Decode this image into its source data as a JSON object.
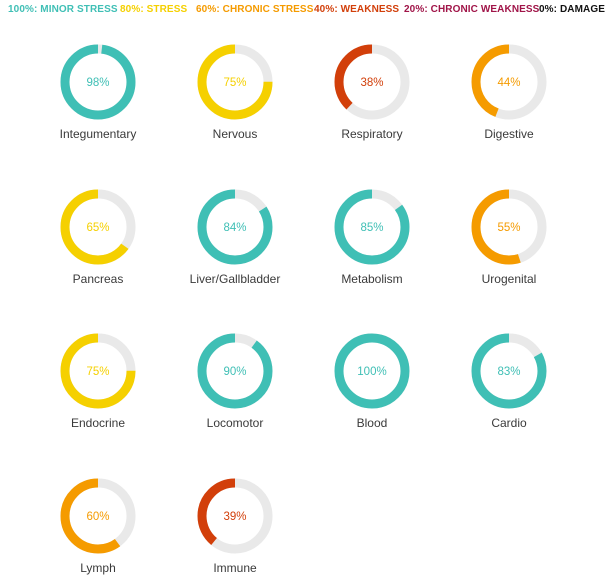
{
  "legend": [
    {
      "label": "100%: MINOR STRESS",
      "color": "#3fbfb5"
    },
    {
      "label": "80%: STRESS",
      "color": "#f5d000"
    },
    {
      "label": "60%: CHRONIC STRESS",
      "color": "#f59b00"
    },
    {
      "label": "40%: WEAKNESS",
      "color": "#d23f0a"
    },
    {
      "label": "20%: CHRONIC WEAKNESS",
      "color": "#a01448"
    },
    {
      "label": "0%: DAMAGE",
      "color": "#111111"
    }
  ],
  "chart_data": {
    "type": "donut-grid",
    "categories": [
      "Integumentary",
      "Nervous",
      "Respiratory",
      "Digestive",
      "Pancreas",
      "Liver/Gallbladder",
      "Metabolism",
      "Urogenital",
      "Endocrine",
      "Locomotor",
      "Blood",
      "Cardio",
      "Lymph",
      "Immune"
    ],
    "values": [
      98,
      75,
      38,
      44,
      65,
      84,
      85,
      55,
      75,
      90,
      100,
      83,
      60,
      39
    ],
    "value_labels": [
      "98%",
      "75%",
      "38%",
      "44%",
      "65%",
      "84%",
      "85%",
      "55%",
      "75%",
      "90%",
      "100%",
      "83%",
      "60%",
      "39%"
    ],
    "colors": [
      "#3fbfb5",
      "#f5d000",
      "#d23f0a",
      "#f59b00",
      "#f5d000",
      "#3fbfb5",
      "#3fbfb5",
      "#f59b00",
      "#f5d000",
      "#3fbfb5",
      "#3fbfb5",
      "#3fbfb5",
      "#f59b00",
      "#d23f0a"
    ],
    "ylim": [
      0,
      100
    ]
  }
}
